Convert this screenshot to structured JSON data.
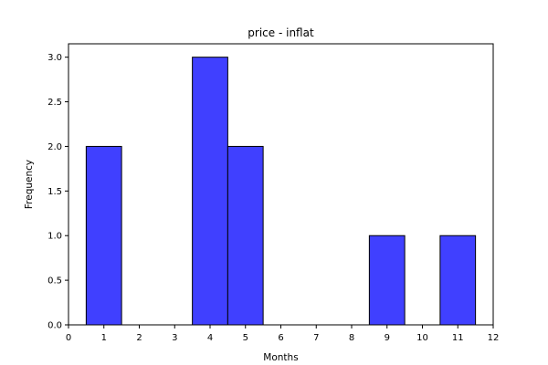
{
  "chart_data": {
    "type": "bar",
    "title": "price - inflat",
    "xlabel": "Months",
    "ylabel": "Frequency",
    "xlim": [
      0,
      12
    ],
    "ylim": [
      0,
      3.15
    ],
    "xticks": [
      0,
      1,
      2,
      3,
      4,
      5,
      6,
      7,
      8,
      9,
      10,
      11,
      12
    ],
    "yticks": [
      0.0,
      0.5,
      1.0,
      1.5,
      2.0,
      2.5,
      3.0
    ],
    "ytick_labels": [
      "0.0",
      "0.5",
      "1.0",
      "1.5",
      "2.0",
      "2.5",
      "3.0"
    ],
    "bins": [
      {
        "x0": 0.5,
        "x1": 1.5,
        "value": 2
      },
      {
        "x0": 1.5,
        "x1": 2.5,
        "value": 0
      },
      {
        "x0": 2.5,
        "x1": 3.5,
        "value": 0
      },
      {
        "x0": 3.5,
        "x1": 4.5,
        "value": 3
      },
      {
        "x0": 4.5,
        "x1": 5.5,
        "value": 2
      },
      {
        "x0": 5.5,
        "x1": 6.5,
        "value": 0
      },
      {
        "x0": 6.5,
        "x1": 7.5,
        "value": 0
      },
      {
        "x0": 7.5,
        "x1": 8.5,
        "value": 0
      },
      {
        "x0": 8.5,
        "x1": 9.5,
        "value": 1
      },
      {
        "x0": 9.5,
        "x1": 10.5,
        "value": 0
      },
      {
        "x0": 10.5,
        "x1": 11.5,
        "value": 1
      }
    ],
    "bar_color": "#4040ff",
    "edge_color": "#000000",
    "grid": false,
    "legend": "none"
  }
}
